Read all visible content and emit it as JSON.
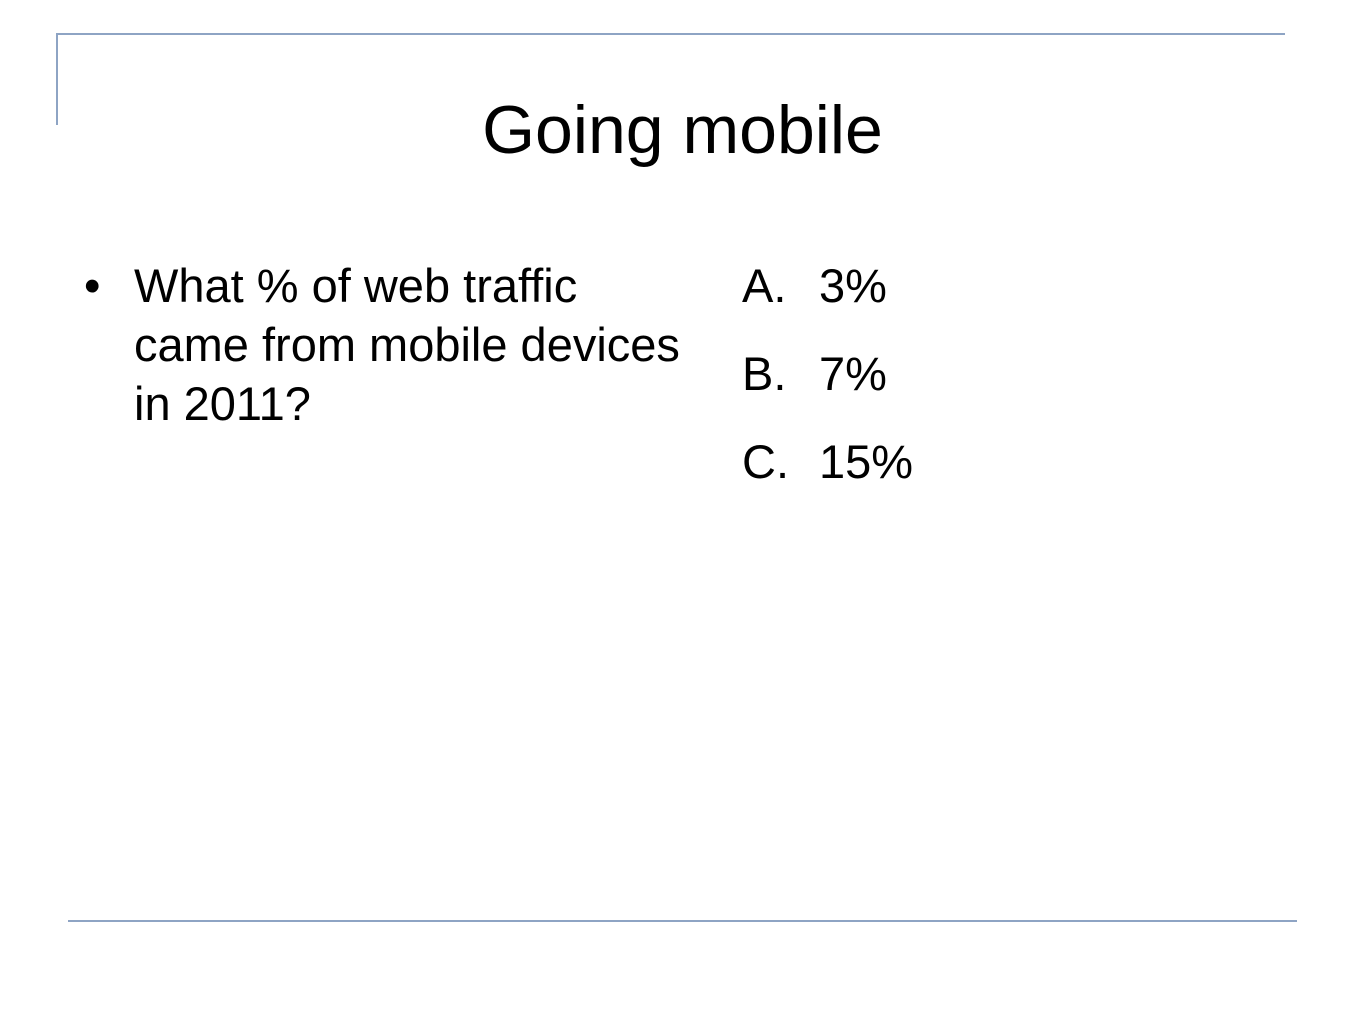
{
  "slide": {
    "title": "Going mobile",
    "question": {
      "bullet": "•",
      "text": "What % of web traffic came from mobile devices in 2011?"
    },
    "answers": [
      {
        "letter": "A.",
        "value": "3%"
      },
      {
        "letter": "B.",
        "value": "7%"
      },
      {
        "letter": "C.",
        "value": "15%"
      }
    ]
  },
  "colors": {
    "frame_line": "#8ea4c4",
    "text": "#000000",
    "background": "#ffffff"
  }
}
